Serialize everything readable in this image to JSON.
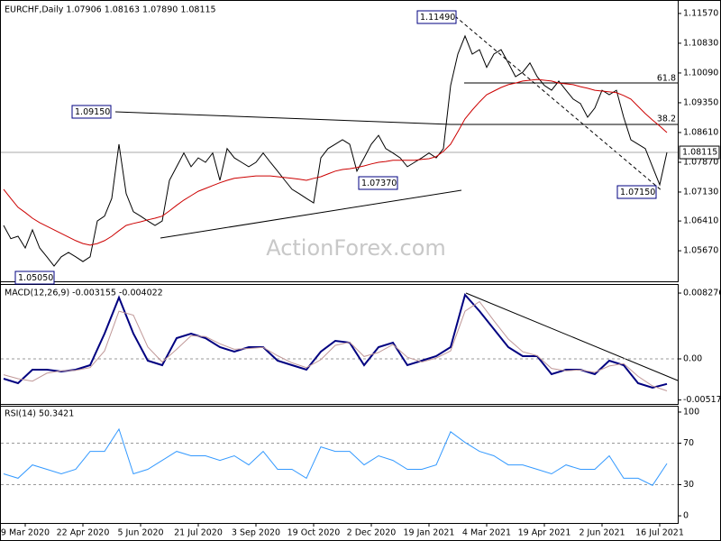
{
  "chart_data": [
    {
      "type": "line",
      "title": "EURCHF,Daily  1.07906 1.08163 1.07890 1.08115",
      "categories": [
        null,
        null,
        null,
        "9 Mar 2020",
        null,
        null,
        null,
        null,
        null,
        null,
        null,
        "22 Apr 2020",
        null,
        null,
        null,
        null,
        null,
        null,
        null,
        "5 Jun 2020",
        null,
        null,
        null,
        null,
        null,
        null,
        null,
        "21 Jul 2020",
        null,
        null,
        null,
        null,
        null,
        null,
        null,
        "3 Sep 2020",
        null,
        null,
        null,
        null,
        null,
        null,
        null,
        "19 Oct 2020",
        null,
        null,
        null,
        null,
        null,
        null,
        null,
        "2 Dec 2020",
        null,
        null,
        null,
        null,
        null,
        null,
        null,
        "19 Jan 2021",
        null,
        null,
        null,
        null,
        null,
        null,
        null,
        "4 Mar 2021",
        null,
        null,
        null,
        null,
        null,
        null,
        null,
        "19 Apr 2021",
        null,
        null,
        null,
        null,
        null,
        null,
        null,
        "2 Jun 2021",
        null,
        null,
        null,
        null,
        null,
        null,
        null,
        "16 Jul 2021",
        null
      ],
      "series": [
        {
          "color": "#000000",
          "values": [
            1.063,
            1.0597,
            1.0603,
            1.0574,
            1.0619,
            1.0574,
            1.0552,
            1.0529,
            1.0552,
            1.0563,
            1.0552,
            1.054,
            1.0552,
            1.0641,
            1.0653,
            1.0697,
            1.0832,
            1.0709,
            1.0664,
            1.0653,
            1.0641,
            1.063,
            1.0641,
            1.0742,
            1.0776,
            1.081,
            1.0776,
            1.0798,
            1.0787,
            1.081,
            1.0742,
            1.0821,
            1.0798,
            1.0787,
            1.0776,
            1.0787,
            1.081,
            1.0787,
            1.0765,
            1.0742,
            1.072,
            1.0709,
            1.0697,
            1.0686,
            1.0798,
            1.0821,
            1.0832,
            1.0843,
            1.0832,
            1.0765,
            1.0798,
            1.0832,
            1.0854,
            1.0821,
            1.081,
            1.0798,
            1.0776,
            1.0787,
            1.0798,
            1.081,
            1.0798,
            1.0821,
            1.0978,
            1.1056,
            1.1101,
            1.1056,
            1.1067,
            1.1023,
            1.1056,
            1.1067,
            1.1034,
            1.1,
            1.1011,
            1.1034,
            1.1,
            1.0978,
            1.0966,
            1.0989,
            1.0966,
            1.0944,
            1.0933,
            1.0899,
            1.0922,
            1.0966,
            1.0955,
            1.0966,
            1.0899,
            1.0843,
            1.0832,
            1.0821,
            1.0776,
            1.0731,
            1.08115
          ]
        },
        {
          "color": "#cc0000",
          "values": [
            1.072,
            1.0697,
            1.0675,
            1.0662,
            1.0648,
            1.0637,
            1.0628,
            1.0619,
            1.061,
            1.0601,
            1.0592,
            1.0585,
            1.0581,
            1.0585,
            1.0592,
            1.0603,
            1.0617,
            1.063,
            1.0635,
            1.0639,
            1.0644,
            1.0648,
            1.0653,
            1.0666,
            1.068,
            1.0693,
            1.0704,
            1.0715,
            1.0722,
            1.0729,
            1.0736,
            1.0742,
            1.0747,
            1.0749,
            1.0751,
            1.0753,
            1.0753,
            1.0753,
            1.0751,
            1.0749,
            1.0747,
            1.0745,
            1.0742,
            1.0747,
            1.0751,
            1.0758,
            1.0765,
            1.0769,
            1.0771,
            1.0774,
            1.0778,
            1.0783,
            1.0787,
            1.0789,
            1.0792,
            1.0792,
            1.0792,
            1.0792,
            1.0794,
            1.0796,
            1.0801,
            1.0814,
            1.0832,
            1.0863,
            1.0895,
            1.0917,
            1.0937,
            1.0955,
            1.0964,
            1.0973,
            1.098,
            1.0984,
            1.0989,
            1.0991,
            1.0993,
            1.0991,
            1.0989,
            1.0984,
            1.0982,
            1.098,
            1.0975,
            1.0971,
            1.0966,
            1.0964,
            1.0962,
            1.096,
            1.0953,
            1.0944,
            1.0926,
            1.0908,
            1.0892,
            1.0877,
            1.0861
          ]
        }
      ],
      "ylim": [
        1.0491,
        1.1186
      ],
      "yticks": [
        {
          "value": 1.1157,
          "label": "1.11570"
        },
        {
          "value": 1.1083,
          "label": "1.10830"
        },
        {
          "value": 1.1009,
          "label": "1.10090"
        },
        {
          "value": 1.0935,
          "label": "1.09350"
        },
        {
          "value": 1.0861,
          "label": "1.08610"
        },
        {
          "value": 1.0787,
          "label": "1.07870"
        },
        {
          "value": 1.0713,
          "label": "1.07130"
        },
        {
          "value": 1.0641,
          "label": "1.06410"
        },
        {
          "value": 1.0567,
          "label": "1.05670"
        }
      ],
      "grid": false,
      "annotations": [
        "1.11490",
        "1.09150",
        "1.07370",
        "1.07150",
        "1.05050"
      ],
      "fib_labels": [
        "61.8",
        "38.2"
      ],
      "last_price_label": "1.08115",
      "watermark": "ActionForex.com"
    },
    {
      "type": "line",
      "title": "MACD(12,26,9) -0.003155 -0.004022",
      "series": [
        {
          "color": "#000080",
          "values": [
            -0.002494,
            -0.003061,
            -0.001361,
            -0.001361,
            -0.001587,
            -0.001361,
            -0.000794,
            0.003175,
            0.00771,
            0.003175,
            -0.000227,
            -0.000794,
            0.002608,
            0.003175,
            0.002608,
            0.001474,
            0.000907,
            0.001474,
            0.001474,
            -0.000227,
            -0.000794,
            -0.001361,
            0.000907,
            0.002268,
            0.002041,
            -0.000794,
            0.001474,
            0.002041,
            -0.000794,
            -0.000227,
            0.00034,
            0.001474,
            0.00805,
            0.006009,
            0.003741,
            0.001474,
            0.00034,
            0.00034,
            -0.001927,
            -0.001361,
            -0.001361,
            -0.001927,
            -0.000227,
            -0.000794,
            -0.003061,
            -0.003628,
            -0.003155
          ]
        },
        {
          "color": "#c09898",
          "values": [
            -0.002,
            -0.002494,
            -0.0028,
            -0.0018,
            -0.0015,
            -0.00145,
            -0.0011,
            0.001,
            0.006,
            0.0055,
            0.0015,
            -0.0004,
            0.0012,
            0.0029,
            0.0028,
            0.0019,
            0.0012,
            0.0013,
            0.00145,
            0.0004,
            -0.0005,
            -0.0011,
            -0.0001,
            0.0017,
            0.0021,
            0.0003,
            0.0008,
            0.0018,
            0.0002,
            -0.0004,
            0.0001,
            0.001,
            0.006,
            0.0072,
            0.0048,
            0.0025,
            0.0009,
            0.0004,
            -0.0012,
            -0.0015,
            -0.0014,
            -0.0017,
            -0.0009,
            -0.0006,
            -0.0022,
            -0.0034,
            -0.004022
          ]
        }
      ],
      "ylim": [
        -0.00567,
        0.0093
      ],
      "yticks": [
        0.008276,
        {
          "value": 0,
          "label": "0.00"
        },
        -0.005174
      ],
      "grid": true
    },
    {
      "type": "line",
      "title": "RSI(14) 50.3421",
      "series": [
        {
          "color": "#3399ff",
          "values": [
            40.5,
            36.2,
            49.1,
            44.8,
            40.5,
            44.8,
            62.1,
            62.1,
            83.6,
            40.5,
            44.8,
            53.4,
            62.1,
            57.8,
            57.8,
            53.4,
            57.8,
            49.1,
            62.1,
            44.8,
            44.8,
            36.2,
            66.4,
            62.1,
            62.1,
            49.1,
            57.8,
            53.4,
            44.8,
            44.8,
            49.1,
            81,
            70.7,
            62.1,
            57.8,
            49.1,
            49.1,
            44.8,
            40.5,
            49.1,
            44.8,
            44.8,
            57.8,
            36.2,
            36.2,
            29.3,
            50.3421
          ]
        }
      ],
      "ylim": [
        -6.9,
        105.2
      ],
      "yticks": [
        100,
        70,
        30,
        0
      ],
      "grid": true
    }
  ]
}
